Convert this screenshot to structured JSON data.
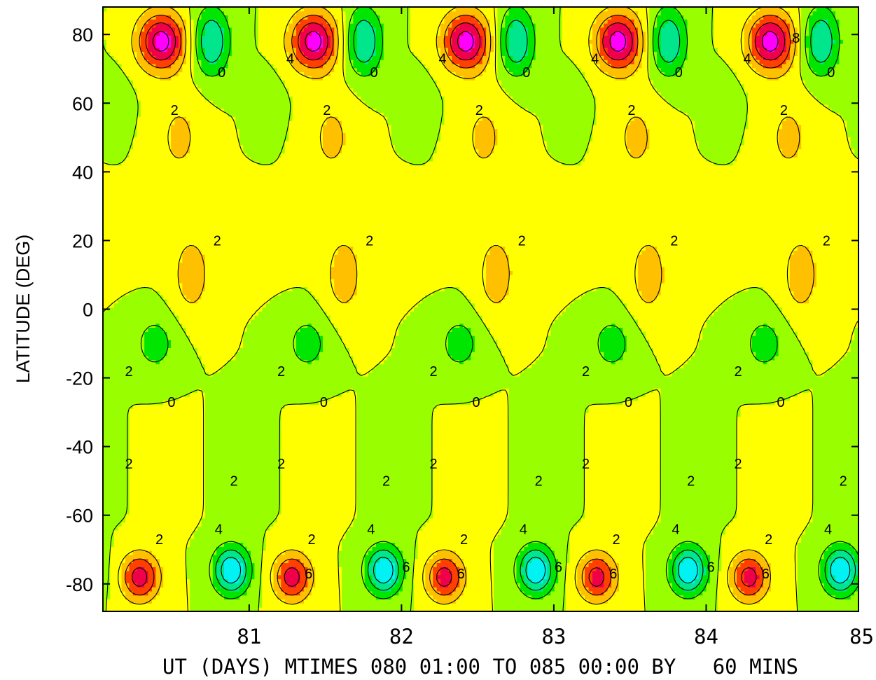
{
  "chart_data": {
    "type": "contour",
    "xlabel": "UT (DAYS) MTIMES 080 01:00 TO 085 00:00 BY   60 MINS",
    "ylabel": "LATITUDE (DEG)",
    "xlim": [
      80.04,
      85.0
    ],
    "ylim": [
      -88,
      88
    ],
    "x_ticks": [
      81,
      82,
      83,
      84,
      85
    ],
    "x_tick_labels": [
      "81",
      "82",
      "83",
      "84",
      "85"
    ],
    "y_ticks": [
      80,
      60,
      40,
      20,
      0,
      -20,
      -40,
      -60,
      -80
    ],
    "y_tick_labels": [
      "80",
      "60",
      "40",
      "20",
      "0",
      "-20",
      "-40",
      "-60",
      "-80"
    ],
    "period_days": 1.0,
    "contour_interval": 2,
    "negative_contours": "dashed",
    "positive_contours": "solid",
    "color_scale": {
      "levels": [
        -8,
        -6,
        -4,
        -2,
        0,
        2,
        4,
        6,
        8
      ],
      "colors": [
        "#0a1ee6",
        "#00aaff",
        "#00f2f2",
        "#00e68c",
        "#00e600",
        "#99ff00",
        "#ffff00",
        "#ffc000",
        "#ff4000",
        "#f0004a",
        "#ff00ff"
      ]
    },
    "features": [
      {
        "lat": 78,
        "x": 80.42,
        "value": 9
      },
      {
        "lat": 78,
        "x": 80.75,
        "value": -6
      },
      {
        "lat": 9,
        "x": 80.62,
        "value": 3
      },
      {
        "lat": -10,
        "x": 80.38,
        "value": -3
      },
      {
        "lat": -78,
        "x": 80.28,
        "value": 7
      },
      {
        "lat": -76,
        "x": 80.88,
        "value": -8
      },
      {
        "lat": 50,
        "x": 80.54,
        "value": 2.5
      },
      {
        "lat": 60,
        "x": 80.12,
        "value": -1
      }
    ],
    "contour_labels": [
      {
        "x": 80.51,
        "lat": 58,
        "text": "2"
      },
      {
        "x": 80.82,
        "lat": 69,
        "text": "0"
      },
      {
        "x": 80.79,
        "lat": 20,
        "text": "2"
      },
      {
        "x": 80.21,
        "lat": -18,
        "text": "2"
      },
      {
        "x": 80.49,
        "lat": -27,
        "text": "0"
      },
      {
        "x": 80.21,
        "lat": -45,
        "text": "2"
      },
      {
        "x": 80.9,
        "lat": -50,
        "text": "2"
      },
      {
        "x": 80.41,
        "lat": -67,
        "text": "2"
      },
      {
        "x": 80.8,
        "lat": -64,
        "text": "4"
      },
      {
        "x": 81.39,
        "lat": -77,
        "text": "6"
      },
      {
        "x": 82.03,
        "lat": -75,
        "text": "6"
      },
      {
        "x": 84.59,
        "lat": 79,
        "text": "8"
      },
      {
        "x": 81.27,
        "lat": 73,
        "text": "4"
      }
    ]
  }
}
